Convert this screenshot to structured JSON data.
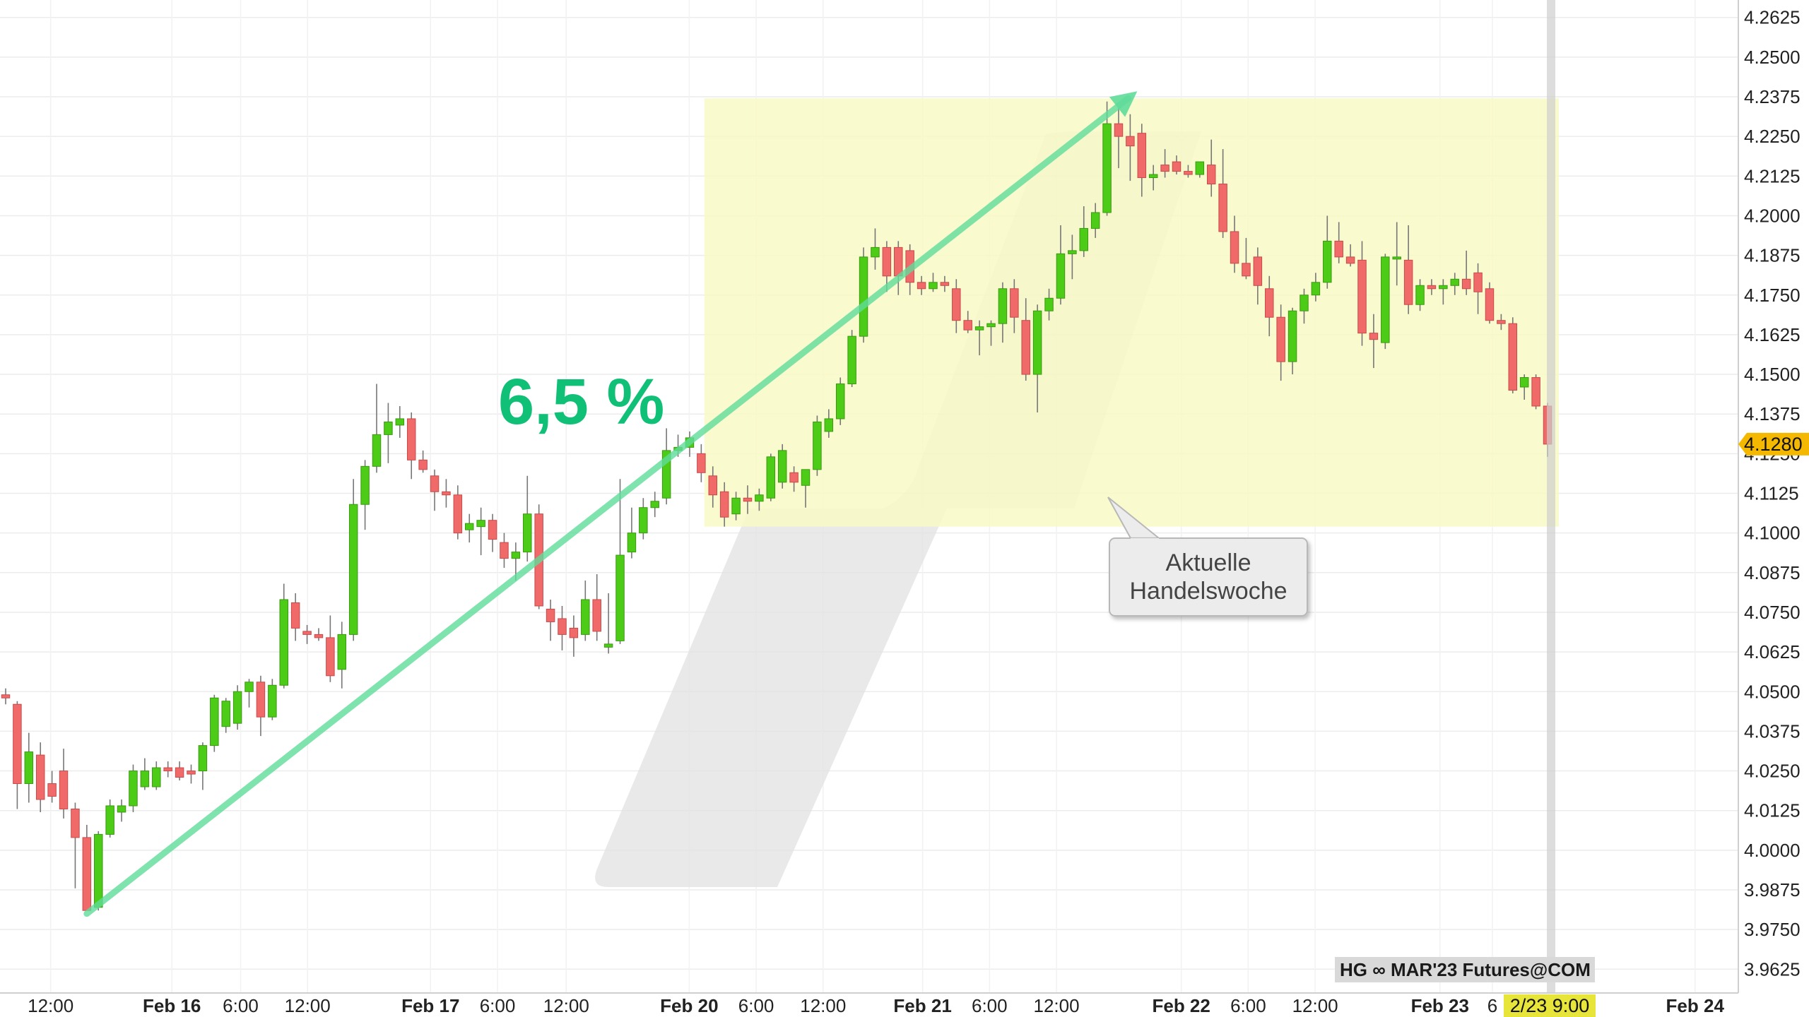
{
  "chart_data": {
    "type": "candlestick",
    "instrument_label": "HG ∞ MAR'23 Futures@COM",
    "last_price_label": "4.1280",
    "last_price": 4.128,
    "crosshair_time_label": "2/23 9:00",
    "annotation_percent": "6,5 %",
    "callout_text": [
      "Aktuelle",
      "Handelswoche"
    ],
    "yrange": [
      3.955,
      4.268
    ],
    "y_ticks": [
      "3.9625",
      "3.9750",
      "3.9875",
      "4.0000",
      "4.0125",
      "4.0250",
      "4.0375",
      "4.0500",
      "4.0625",
      "4.0750",
      "4.0875",
      "4.1000",
      "4.1125",
      "4.1250",
      "4.1375",
      "4.1500",
      "4.1625",
      "4.1750",
      "4.1875",
      "4.2000",
      "4.2125",
      "4.2250",
      "4.2375",
      "4.2500",
      "4.2625"
    ],
    "x_ticks": [
      {
        "label": "12:00",
        "bold": false,
        "x": 0.028
      },
      {
        "label": "Feb 16",
        "bold": true,
        "x": 0.095
      },
      {
        "label": "6:00",
        "bold": false,
        "x": 0.133
      },
      {
        "label": "12:00",
        "bold": false,
        "x": 0.17
      },
      {
        "label": "Feb 17",
        "bold": true,
        "x": 0.238
      },
      {
        "label": "6:00",
        "bold": false,
        "x": 0.275
      },
      {
        "label": "12:00",
        "bold": false,
        "x": 0.313
      },
      {
        "label": "Feb 20",
        "bold": true,
        "x": 0.381
      },
      {
        "label": "6:00",
        "bold": false,
        "x": 0.418
      },
      {
        "label": "12:00",
        "bold": false,
        "x": 0.455
      },
      {
        "label": "Feb 21",
        "bold": true,
        "x": 0.51
      },
      {
        "label": "6:00",
        "bold": false,
        "x": 0.547
      },
      {
        "label": "12:00",
        "bold": false,
        "x": 0.584
      },
      {
        "label": "Feb 22",
        "bold": true,
        "x": 0.653
      },
      {
        "label": "6:00",
        "bold": false,
        "x": 0.69
      },
      {
        "label": "12:00",
        "bold": false,
        "x": 0.727
      },
      {
        "label": "Feb 23",
        "bold": true,
        "x": 0.796
      },
      {
        "label": "6",
        "bold": false,
        "x": 0.825
      },
      {
        "label": "Feb 24",
        "bold": true,
        "x": 0.937
      }
    ],
    "candles": [
      {
        "o": 4.049,
        "h": 4.051,
        "l": 4.046,
        "c": 4.048
      },
      {
        "o": 4.046,
        "h": 4.047,
        "l": 4.013,
        "c": 4.021
      },
      {
        "o": 4.021,
        "h": 4.037,
        "l": 4.015,
        "c": 4.031
      },
      {
        "o": 4.03,
        "h": 4.034,
        "l": 4.012,
        "c": 4.016
      },
      {
        "o": 4.021,
        "h": 4.025,
        "l": 4.015,
        "c": 4.017
      },
      {
        "o": 4.025,
        "h": 4.032,
        "l": 4.01,
        "c": 4.013
      },
      {
        "o": 4.013,
        "h": 4.015,
        "l": 3.988,
        "c": 4.004
      },
      {
        "o": 4.004,
        "h": 4.008,
        "l": 3.981,
        "c": 3.981
      },
      {
        "o": 3.982,
        "h": 4.006,
        "l": 3.981,
        "c": 4.005
      },
      {
        "o": 4.005,
        "h": 4.016,
        "l": 4.004,
        "c": 4.014
      },
      {
        "o": 4.012,
        "h": 4.016,
        "l": 4.009,
        "c": 4.014
      },
      {
        "o": 4.014,
        "h": 4.027,
        "l": 4.012,
        "c": 4.025
      },
      {
        "o": 4.02,
        "h": 4.029,
        "l": 4.019,
        "c": 4.025
      },
      {
        "o": 4.02,
        "h": 4.028,
        "l": 4.019,
        "c": 4.026
      },
      {
        "o": 4.026,
        "h": 4.028,
        "l": 4.023,
        "c": 4.025
      },
      {
        "o": 4.026,
        "h": 4.028,
        "l": 4.022,
        "c": 4.023
      },
      {
        "o": 4.025,
        "h": 4.027,
        "l": 4.021,
        "c": 4.024
      },
      {
        "o": 4.025,
        "h": 4.034,
        "l": 4.019,
        "c": 4.033
      },
      {
        "o": 4.033,
        "h": 4.049,
        "l": 4.031,
        "c": 4.048
      },
      {
        "o": 4.039,
        "h": 4.048,
        "l": 4.037,
        "c": 4.047
      },
      {
        "o": 4.04,
        "h": 4.052,
        "l": 4.038,
        "c": 4.05
      },
      {
        "o": 4.05,
        "h": 4.054,
        "l": 4.045,
        "c": 4.053
      },
      {
        "o": 4.053,
        "h": 4.055,
        "l": 4.036,
        "c": 4.042
      },
      {
        "o": 4.042,
        "h": 4.054,
        "l": 4.041,
        "c": 4.052
      },
      {
        "o": 4.052,
        "h": 4.084,
        "l": 4.051,
        "c": 4.079
      },
      {
        "o": 4.078,
        "h": 4.081,
        "l": 4.066,
        "c": 4.07
      },
      {
        "o": 4.069,
        "h": 4.071,
        "l": 4.065,
        "c": 4.068
      },
      {
        "o": 4.068,
        "h": 4.07,
        "l": 4.066,
        "c": 4.067
      },
      {
        "o": 4.067,
        "h": 4.074,
        "l": 4.053,
        "c": 4.055
      },
      {
        "o": 4.057,
        "h": 4.072,
        "l": 4.051,
        "c": 4.068
      },
      {
        "o": 4.068,
        "h": 4.117,
        "l": 4.066,
        "c": 4.109
      },
      {
        "o": 4.109,
        "h": 4.123,
        "l": 4.101,
        "c": 4.121
      },
      {
        "o": 4.121,
        "h": 4.147,
        "l": 4.119,
        "c": 4.131
      },
      {
        "o": 4.131,
        "h": 4.141,
        "l": 4.122,
        "c": 4.135
      },
      {
        "o": 4.134,
        "h": 4.14,
        "l": 4.13,
        "c": 4.136
      },
      {
        "o": 4.136,
        "h": 4.138,
        "l": 4.117,
        "c": 4.123
      },
      {
        "o": 4.123,
        "h": 4.126,
        "l": 4.119,
        "c": 4.12
      },
      {
        "o": 4.118,
        "h": 4.12,
        "l": 4.107,
        "c": 4.113
      },
      {
        "o": 4.113,
        "h": 4.117,
        "l": 4.108,
        "c": 4.112
      },
      {
        "o": 4.112,
        "h": 4.115,
        "l": 4.098,
        "c": 4.1
      },
      {
        "o": 4.101,
        "h": 4.106,
        "l": 4.097,
        "c": 4.103
      },
      {
        "o": 4.102,
        "h": 4.108,
        "l": 4.093,
        "c": 4.104
      },
      {
        "o": 4.104,
        "h": 4.106,
        "l": 4.094,
        "c": 4.098
      },
      {
        "o": 4.097,
        "h": 4.1,
        "l": 4.089,
        "c": 4.092
      },
      {
        "o": 4.092,
        "h": 4.097,
        "l": 4.085,
        "c": 4.094
      },
      {
        "o": 4.094,
        "h": 4.118,
        "l": 4.091,
        "c": 4.106
      },
      {
        "o": 4.106,
        "h": 4.109,
        "l": 4.076,
        "c": 4.077
      },
      {
        "o": 4.076,
        "h": 4.079,
        "l": 4.066,
        "c": 4.072
      },
      {
        "o": 4.073,
        "h": 4.077,
        "l": 4.063,
        "c": 4.068
      },
      {
        "o": 4.07,
        "h": 4.074,
        "l": 4.061,
        "c": 4.067
      },
      {
        "o": 4.068,
        "h": 4.085,
        "l": 4.066,
        "c": 4.079
      },
      {
        "o": 4.079,
        "h": 4.087,
        "l": 4.066,
        "c": 4.069
      },
      {
        "o": 4.064,
        "h": 4.081,
        "l": 4.062,
        "c": 4.065
      },
      {
        "o": 4.066,
        "h": 4.117,
        "l": 4.065,
        "c": 4.093
      },
      {
        "o": 4.094,
        "h": 4.108,
        "l": 4.092,
        "c": 4.1
      },
      {
        "o": 4.1,
        "h": 4.111,
        "l": 4.098,
        "c": 4.108
      },
      {
        "o": 4.108,
        "h": 4.113,
        "l": 4.105,
        "c": 4.11
      },
      {
        "o": 4.111,
        "h": 4.133,
        "l": 4.109,
        "c": 4.126
      },
      {
        "o": 4.126,
        "h": 4.131,
        "l": 4.124,
        "c": 4.127
      },
      {
        "o": 4.127,
        "h": 4.132,
        "l": 4.124,
        "c": 4.13
      },
      {
        "o": 4.125,
        "h": 4.128,
        "l": 4.116,
        "c": 4.119
      },
      {
        "o": 4.118,
        "h": 4.121,
        "l": 4.108,
        "c": 4.112
      },
      {
        "o": 4.113,
        "h": 4.116,
        "l": 4.102,
        "c": 4.105
      },
      {
        "o": 4.106,
        "h": 4.113,
        "l": 4.104,
        "c": 4.111
      },
      {
        "o": 4.111,
        "h": 4.115,
        "l": 4.106,
        "c": 4.11
      },
      {
        "o": 4.11,
        "h": 4.114,
        "l": 4.107,
        "c": 4.112
      },
      {
        "o": 4.111,
        "h": 4.125,
        "l": 4.11,
        "c": 4.124
      },
      {
        "o": 4.116,
        "h": 4.128,
        "l": 4.114,
        "c": 4.126
      },
      {
        "o": 4.119,
        "h": 4.121,
        "l": 4.113,
        "c": 4.116
      },
      {
        "o": 4.115,
        "h": 4.12,
        "l": 4.108,
        "c": 4.12
      },
      {
        "o": 4.12,
        "h": 4.137,
        "l": 4.118,
        "c": 4.135
      },
      {
        "o": 4.132,
        "h": 4.139,
        "l": 4.13,
        "c": 4.136
      },
      {
        "o": 4.136,
        "h": 4.149,
        "l": 4.134,
        "c": 4.147
      },
      {
        "o": 4.147,
        "h": 4.164,
        "l": 4.146,
        "c": 4.162
      },
      {
        "o": 4.162,
        "h": 4.19,
        "l": 4.16,
        "c": 4.187
      },
      {
        "o": 4.187,
        "h": 4.196,
        "l": 4.183,
        "c": 4.19
      },
      {
        "o": 4.19,
        "h": 4.192,
        "l": 4.176,
        "c": 4.181
      },
      {
        "o": 4.19,
        "h": 4.192,
        "l": 4.175,
        "c": 4.181
      },
      {
        "o": 4.189,
        "h": 4.191,
        "l": 4.175,
        "c": 4.179
      },
      {
        "o": 4.179,
        "h": 4.181,
        "l": 4.175,
        "c": 4.177
      },
      {
        "o": 4.177,
        "h": 4.182,
        "l": 4.176,
        "c": 4.179
      },
      {
        "o": 4.179,
        "h": 4.181,
        "l": 4.176,
        "c": 4.178
      },
      {
        "o": 4.177,
        "h": 4.18,
        "l": 4.163,
        "c": 4.167
      },
      {
        "o": 4.167,
        "h": 4.17,
        "l": 4.163,
        "c": 4.164
      },
      {
        "o": 4.164,
        "h": 4.167,
        "l": 4.156,
        "c": 4.165
      },
      {
        "o": 4.165,
        "h": 4.167,
        "l": 4.159,
        "c": 4.166
      },
      {
        "o": 4.166,
        "h": 4.179,
        "l": 4.16,
        "c": 4.177
      },
      {
        "o": 4.177,
        "h": 4.18,
        "l": 4.163,
        "c": 4.168
      },
      {
        "o": 4.167,
        "h": 4.174,
        "l": 4.148,
        "c": 4.15
      },
      {
        "o": 4.15,
        "h": 4.172,
        "l": 4.138,
        "c": 4.17
      },
      {
        "o": 4.17,
        "h": 4.177,
        "l": 4.167,
        "c": 4.174
      },
      {
        "o": 4.174,
        "h": 4.197,
        "l": 4.172,
        "c": 4.188
      },
      {
        "o": 4.188,
        "h": 4.194,
        "l": 4.18,
        "c": 4.189
      },
      {
        "o": 4.189,
        "h": 4.203,
        "l": 4.187,
        "c": 4.196
      },
      {
        "o": 4.196,
        "h": 4.204,
        "l": 4.193,
        "c": 4.201
      },
      {
        "o": 4.201,
        "h": 4.236,
        "l": 4.2,
        "c": 4.229
      },
      {
        "o": 4.229,
        "h": 4.234,
        "l": 4.215,
        "c": 4.225
      },
      {
        "o": 4.225,
        "h": 4.232,
        "l": 4.211,
        "c": 4.222
      },
      {
        "o": 4.226,
        "h": 4.229,
        "l": 4.206,
        "c": 4.212
      },
      {
        "o": 4.212,
        "h": 4.216,
        "l": 4.208,
        "c": 4.213
      },
      {
        "o": 4.216,
        "h": 4.221,
        "l": 4.212,
        "c": 4.214
      },
      {
        "o": 4.217,
        "h": 4.219,
        "l": 4.213,
        "c": 4.214
      },
      {
        "o": 4.214,
        "h": 4.216,
        "l": 4.212,
        "c": 4.213
      },
      {
        "o": 4.213,
        "h": 4.217,
        "l": 4.212,
        "c": 4.217
      },
      {
        "o": 4.216,
        "h": 4.224,
        "l": 4.206,
        "c": 4.21
      },
      {
        "o": 4.21,
        "h": 4.221,
        "l": 4.193,
        "c": 4.195
      },
      {
        "o": 4.195,
        "h": 4.2,
        "l": 4.182,
        "c": 4.185
      },
      {
        "o": 4.185,
        "h": 4.193,
        "l": 4.18,
        "c": 4.181
      },
      {
        "o": 4.187,
        "h": 4.19,
        "l": 4.172,
        "c": 4.178
      },
      {
        "o": 4.177,
        "h": 4.181,
        "l": 4.162,
        "c": 4.168
      },
      {
        "o": 4.168,
        "h": 4.172,
        "l": 4.148,
        "c": 4.154
      },
      {
        "o": 4.154,
        "h": 4.171,
        "l": 4.15,
        "c": 4.17
      },
      {
        "o": 4.17,
        "h": 4.177,
        "l": 4.166,
        "c": 4.175
      },
      {
        "o": 4.175,
        "h": 4.182,
        "l": 4.173,
        "c": 4.179
      },
      {
        "o": 4.179,
        "h": 4.2,
        "l": 4.177,
        "c": 4.192
      },
      {
        "o": 4.192,
        "h": 4.198,
        "l": 4.185,
        "c": 4.187
      },
      {
        "o": 4.187,
        "h": 4.191,
        "l": 4.184,
        "c": 4.185
      },
      {
        "o": 4.186,
        "h": 4.192,
        "l": 4.159,
        "c": 4.163
      },
      {
        "o": 4.163,
        "h": 4.169,
        "l": 4.152,
        "c": 4.161
      },
      {
        "o": 4.16,
        "h": 4.188,
        "l": 4.158,
        "c": 4.187
      },
      {
        "o": 4.187,
        "h": 4.198,
        "l": 4.178,
        "c": 4.187
      },
      {
        "o": 4.186,
        "h": 4.197,
        "l": 4.169,
        "c": 4.172
      },
      {
        "o": 4.172,
        "h": 4.18,
        "l": 4.17,
        "c": 4.178
      },
      {
        "o": 4.178,
        "h": 4.18,
        "l": 4.175,
        "c": 4.177
      },
      {
        "o": 4.177,
        "h": 4.18,
        "l": 4.172,
        "c": 4.178
      },
      {
        "o": 4.178,
        "h": 4.182,
        "l": 4.175,
        "c": 4.18
      },
      {
        "o": 4.18,
        "h": 4.189,
        "l": 4.175,
        "c": 4.177
      },
      {
        "o": 4.182,
        "h": 4.185,
        "l": 4.169,
        "c": 4.176
      },
      {
        "o": 4.177,
        "h": 4.179,
        "l": 4.166,
        "c": 4.167
      },
      {
        "o": 4.167,
        "h": 4.169,
        "l": 4.164,
        "c": 4.166
      },
      {
        "o": 4.166,
        "h": 4.168,
        "l": 4.144,
        "c": 4.145
      },
      {
        "o": 4.146,
        "h": 4.15,
        "l": 4.142,
        "c": 4.149
      },
      {
        "o": 4.149,
        "h": 4.15,
        "l": 4.139,
        "c": 4.14
      },
      {
        "o": 4.14,
        "h": 4.141,
        "l": 4.124,
        "c": 4.128
      }
    ]
  }
}
